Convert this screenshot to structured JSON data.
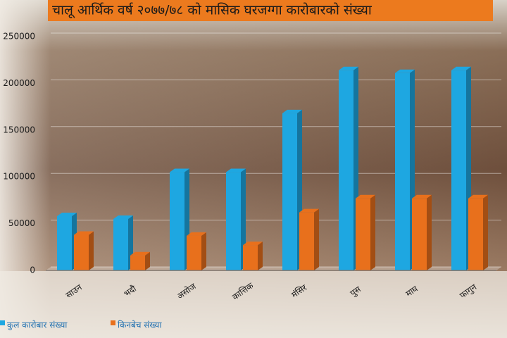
{
  "chart_data": {
    "type": "bar3d",
    "title": "चालू आर्थिक वर्ष २०७७/७८ को मासिक घरजग्गा कारोबारको संख्या",
    "categories": [
      "साउन",
      "भदौ",
      "असोज",
      "कात्तिक",
      "मंसिर",
      "पुस",
      "माघ",
      "फागुन"
    ],
    "series": [
      {
        "name": "कुल कारोबार संख्या",
        "color": "#1ea7e1",
        "values": [
          58000,
          55000,
          105000,
          105000,
          168000,
          214000,
          211000,
          214000
        ]
      },
      {
        "name": "किनबेच संख्या",
        "color": "#e8701c",
        "values": [
          38000,
          16000,
          37000,
          27000,
          62000,
          77000,
          77000,
          77000
        ]
      }
    ],
    "ylim": [
      0,
      250000
    ],
    "yticks": [
      0,
      50000,
      100000,
      150000,
      200000,
      250000
    ],
    "grid": true
  }
}
